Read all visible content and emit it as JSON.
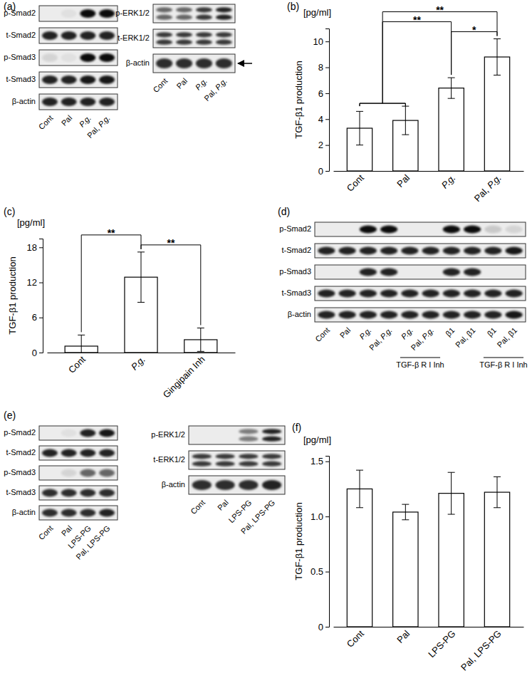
{
  "chart_data": [
    {
      "type": "blot",
      "panel": "(a)",
      "categories": [
        "Cont",
        "Pal",
        "P.g.",
        "Pal, P.g."
      ],
      "series": [
        {
          "name": "p-Smad2",
          "values": [
            0,
            0.05,
            1,
            1
          ]
        },
        {
          "name": "t-Smad2",
          "values": [
            0.9,
            0.9,
            0.9,
            0.9
          ]
        },
        {
          "name": "p-Smad3",
          "values": [
            0.1,
            0.05,
            1,
            1
          ]
        },
        {
          "name": "t-Smad3",
          "values": [
            0.9,
            0.9,
            0.95,
            0.95
          ]
        },
        {
          "name": "β-actin",
          "values": [
            0.9,
            0.9,
            0.9,
            0.9
          ]
        }
      ]
    },
    {
      "type": "blot",
      "categories": [
        "Cont",
        "Pal",
        "P.g.",
        "Pal, P.g."
      ],
      "series": [
        {
          "name": "p-ERK1/2",
          "values": [
            0.6,
            0.6,
            0.8,
            0.9
          ],
          "marker": "doublet"
        },
        {
          "name": "t-ERK1/2",
          "values": [
            0.8,
            0.8,
            0.8,
            0.8
          ],
          "marker": "doublet"
        },
        {
          "name": "β-actin",
          "values": [
            0.85,
            0.85,
            0.85,
            0.85
          ],
          "marker": "arrow"
        }
      ]
    },
    {
      "type": "bar",
      "panel": "(b)",
      "unit": "[pg/ml]",
      "y_label": "TGF-β1 production",
      "categories": [
        "Cont",
        "Pal",
        "P.g.",
        "Pal, P.g."
      ],
      "values": [
        3.3,
        3.9,
        6.4,
        8.8
      ],
      "errors": [
        1.3,
        1.1,
        0.8,
        1.4
      ],
      "color": "#ffffff",
      "ylim": [
        0,
        11
      ],
      "yticks": [
        0,
        2,
        4,
        6,
        8,
        10
      ],
      "annotations": [
        {
          "from": [
            2
          ],
          "to": [
            3
          ],
          "label": "*"
        },
        {
          "from": [
            0,
            1
          ],
          "to": [
            2
          ],
          "label": "**"
        },
        {
          "from": [
            0,
            1
          ],
          "to": [
            3
          ],
          "label": "**"
        }
      ]
    },
    {
      "type": "bar",
      "panel": "(c)",
      "unit": "[pg/ml]",
      "y_label": "TGF-β1 production",
      "categories": [
        "Cont",
        "P.g.",
        "Gingipain Inh"
      ],
      "values": [
        1.1,
        12.9,
        2.2
      ],
      "errors": [
        1.9,
        4.3,
        2.0
      ],
      "color": "#ffffff",
      "ylim": [
        0,
        19.5
      ],
      "yticks": [
        0,
        6,
        12,
        18
      ],
      "annotations": [
        {
          "from": [
            1
          ],
          "to": [
            2
          ],
          "label": "**"
        },
        {
          "from": [
            0
          ],
          "to": [
            1
          ],
          "label": "**"
        }
      ]
    },
    {
      "type": "blot",
      "panel": "(d)",
      "categories": [
        "Cont",
        "Pal",
        "P.g.",
        "Pal, P.g.",
        "P.g.",
        "Pal, P.g.",
        "β1",
        "Pal, β1",
        "β1",
        "Pal, β1"
      ],
      "series": [
        {
          "name": "p-Smad2",
          "values": [
            0,
            0,
            1,
            1,
            0,
            0,
            1,
            1,
            0.15,
            0.1
          ]
        },
        {
          "name": "t-Smad2",
          "values": [
            0.9,
            0.9,
            0.9,
            0.9,
            0.9,
            0.9,
            0.9,
            0.9,
            0.9,
            0.95
          ]
        },
        {
          "name": "p-Smad3",
          "values": [
            0,
            0,
            0.9,
            0.9,
            0,
            0,
            0.9,
            0.9,
            0,
            0
          ]
        },
        {
          "name": "t-Smad3",
          "values": [
            0.9,
            0.9,
            0.9,
            0.9,
            0.9,
            0.9,
            0.9,
            0.9,
            0.9,
            0.9
          ]
        },
        {
          "name": "β-actin",
          "values": [
            0.9,
            0.9,
            0.9,
            0.9,
            0.9,
            0.9,
            0.9,
            0.9,
            0.9,
            0.95
          ]
        }
      ],
      "groups": [
        {
          "label": "TGF-β R I Inh",
          "lanes": [
            4,
            5
          ]
        },
        {
          "label": "TGF-β R I Inh",
          "lanes": [
            8,
            9
          ]
        }
      ]
    },
    {
      "type": "blot",
      "panel": "(e)",
      "categories": [
        "Cont",
        "Pal",
        "LPS-PG",
        "Pal, LPS-PG"
      ],
      "series": [
        {
          "name": "p-Smad2",
          "values": [
            0,
            0.05,
            0.9,
            0.95
          ]
        },
        {
          "name": "t-Smad2",
          "values": [
            0.9,
            0.9,
            0.9,
            0.9
          ]
        },
        {
          "name": "p-Smad3",
          "values": [
            0,
            0.1,
            0.6,
            0.6
          ]
        },
        {
          "name": "t-Smad3",
          "values": [
            0.85,
            0.85,
            0.85,
            0.85
          ]
        },
        {
          "name": "β-actin",
          "values": [
            0.85,
            0.85,
            0.85,
            0.9
          ]
        }
      ]
    },
    {
      "type": "blot",
      "categories": [
        "Cont",
        "Pal",
        "LPS-PG",
        "Pal, LPS-PG"
      ],
      "series": [
        {
          "name": "p-ERK1/2",
          "values": [
            0,
            0,
            0.5,
            0.9
          ],
          "marker": "doublet"
        },
        {
          "name": "t-ERK1/2",
          "values": [
            0.8,
            0.8,
            0.8,
            0.8
          ],
          "marker": "doublet"
        },
        {
          "name": "β-actin",
          "values": [
            0.85,
            0.85,
            0.85,
            0.9
          ]
        }
      ]
    },
    {
      "type": "bar",
      "panel": "(f)",
      "unit": "[pg/ml]",
      "y_label": "TGF-β1 production",
      "categories": [
        "Cont",
        "Pal",
        "LPS-PG",
        "Pal, LPS-PG"
      ],
      "values": [
        1.25,
        1.04,
        1.21,
        1.22
      ],
      "errors": [
        0.17,
        0.07,
        0.19,
        0.14
      ],
      "color": "#ffffff",
      "ylim": [
        0,
        1.55
      ],
      "yticks": [
        0,
        0.5,
        {
          "value": 1,
          "label": "1.0"
        },
        1.5
      ]
    }
  ]
}
